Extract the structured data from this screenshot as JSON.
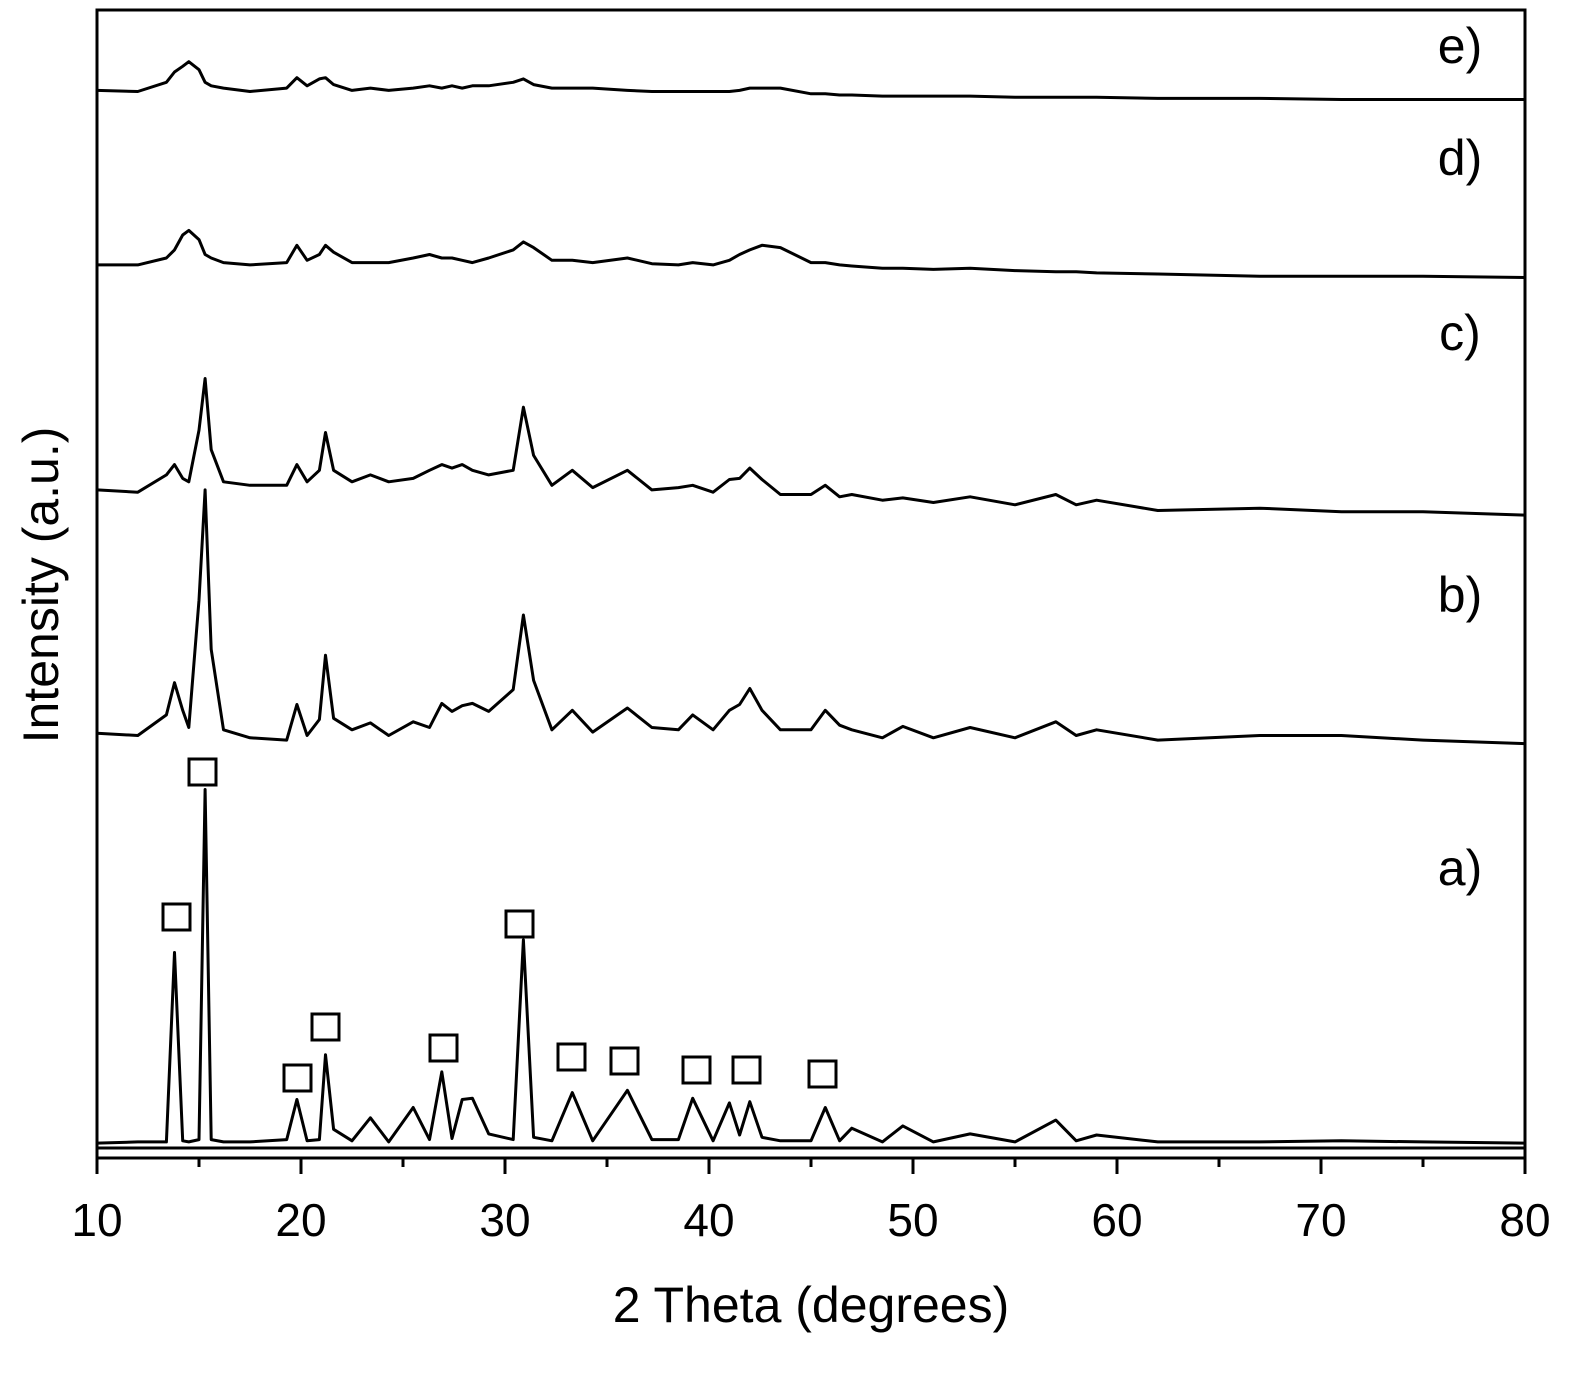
{
  "chart_data": {
    "type": "line",
    "xlabel": "2 Theta (degrees)",
    "ylabel": "Intensity (a.u.)",
    "x": [
      10,
      12,
      13.4,
      13.8,
      14.2,
      14.5,
      15.0,
      15.3,
      15.6,
      16.2,
      17.5,
      19.3,
      19.8,
      20.3,
      20.9,
      21.2,
      21.6,
      22.5,
      23.4,
      24.3,
      25.5,
      26.3,
      26.9,
      27.4,
      27.9,
      28.4,
      29.2,
      30.4,
      30.9,
      31.4,
      32.3,
      33.3,
      34.3,
      36.0,
      37.2,
      38.5,
      39.2,
      40.2,
      41.0,
      41.5,
      42.0,
      42.6,
      43.5,
      45.0,
      45.7,
      46.4,
      47.0,
      48.5,
      49.5,
      51,
      52.8,
      55,
      57,
      58,
      59,
      62,
      67,
      71,
      75,
      80
    ],
    "series": [
      {
        "name": "a)",
        "color": "#000000",
        "values": [
          1.3,
          1.4,
          1.4,
          17.9,
          1.5,
          1.4,
          1.6,
          32.1,
          1.6,
          1.4,
          1.4,
          1.6,
          5.1,
          1.5,
          1.6,
          9.0,
          2.5,
          1.5,
          3.5,
          1.4,
          4.4,
          1.6,
          7.5,
          1.7,
          5.1,
          5.2,
          2.1,
          1.6,
          19.0,
          1.8,
          1.5,
          5.7,
          1.5,
          5.9,
          1.6,
          1.6,
          5.2,
          1.5,
          4.8,
          2.0,
          4.9,
          1.8,
          1.5,
          1.5,
          4.4,
          1.5,
          2.6,
          1.4,
          2.8,
          1.4,
          2.1,
          1.4,
          3.3,
          1.5,
          2.0,
          1.4,
          1.4,
          1.5,
          1.4,
          1.3
        ]
      },
      {
        "name": "b)",
        "color": "#000000",
        "values": [
          37.0,
          36.8,
          38.6,
          41.4,
          39.0,
          37.5,
          48.6,
          58.2,
          44.3,
          37.3,
          36.6,
          36.4,
          39.5,
          36.8,
          38.2,
          43.8,
          38.3,
          37.3,
          37.9,
          36.8,
          38.0,
          37.5,
          39.6,
          38.9,
          39.4,
          39.6,
          38.9,
          40.8,
          47.3,
          41.6,
          37.3,
          39.0,
          37.1,
          39.2,
          37.5,
          37.3,
          38.6,
          37.3,
          39.0,
          39.5,
          40.9,
          39.0,
          37.3,
          37.3,
          39.0,
          37.7,
          37.3,
          36.6,
          37.6,
          36.6,
          37.5,
          36.6,
          38.0,
          36.8,
          37.3,
          36.4,
          36.8,
          36.8,
          36.4,
          36.1
        ]
      },
      {
        "name": "c)",
        "color": "#000000",
        "values": [
          58.2,
          58.0,
          59.5,
          60.4,
          59.2,
          58.9,
          63.4,
          67.9,
          61.7,
          58.9,
          58.6,
          58.6,
          60.4,
          58.9,
          59.9,
          63.2,
          59.9,
          58.9,
          59.5,
          58.9,
          59.2,
          59.9,
          60.4,
          60.1,
          60.4,
          59.9,
          59.5,
          59.9,
          65.4,
          61.2,
          58.6,
          59.9,
          58.4,
          59.9,
          58.2,
          58.4,
          58.6,
          58.0,
          59.1,
          59.2,
          60.1,
          59.1,
          57.8,
          57.8,
          58.6,
          57.6,
          57.8,
          57.3,
          57.5,
          57.1,
          57.6,
          56.9,
          57.8,
          56.9,
          57.3,
          56.4,
          56.6,
          56.3,
          56.3,
          56.0
        ]
      },
      {
        "name": "d)",
        "color": "#000000",
        "values": [
          77.8,
          77.8,
          78.4,
          79.1,
          80.4,
          80.8,
          80.0,
          78.7,
          78.4,
          78.0,
          77.8,
          78.0,
          79.5,
          78.2,
          78.7,
          79.5,
          78.9,
          78.0,
          78.0,
          78.0,
          78.4,
          78.7,
          78.4,
          78.4,
          78.2,
          78.0,
          78.4,
          79.1,
          79.8,
          79.3,
          78.2,
          78.2,
          78.0,
          78.4,
          77.9,
          77.8,
          78.0,
          77.8,
          78.2,
          78.7,
          79.1,
          79.5,
          79.3,
          78.0,
          78.0,
          77.8,
          77.7,
          77.5,
          77.5,
          77.4,
          77.5,
          77.3,
          77.2,
          77.2,
          77.1,
          77.0,
          76.8,
          76.8,
          76.8,
          76.7
        ]
      },
      {
        "name": "e)",
        "color": "#000000",
        "values": [
          93.0,
          92.9,
          93.7,
          94.6,
          95.1,
          95.5,
          94.8,
          93.7,
          93.4,
          93.2,
          92.9,
          93.2,
          94.1,
          93.4,
          94.0,
          94.1,
          93.5,
          93.0,
          93.2,
          93.0,
          93.2,
          93.4,
          93.2,
          93.4,
          93.2,
          93.4,
          93.4,
          93.7,
          94.0,
          93.5,
          93.2,
          93.2,
          93.2,
          93.0,
          92.9,
          92.9,
          92.9,
          92.9,
          92.9,
          93.0,
          93.2,
          93.2,
          93.2,
          92.7,
          92.7,
          92.6,
          92.6,
          92.5,
          92.5,
          92.5,
          92.5,
          92.4,
          92.4,
          92.4,
          92.4,
          92.3,
          92.3,
          92.2,
          92.2,
          92.2
        ]
      }
    ],
    "xlim": [
      10,
      80
    ],
    "xticks": [
      10,
      20,
      30,
      40,
      50,
      60,
      70,
      80
    ],
    "xminorticks": [
      15,
      25,
      35,
      45,
      55,
      65,
      75
    ],
    "ylim": [
      0,
      100
    ],
    "grid": false
  }
}
